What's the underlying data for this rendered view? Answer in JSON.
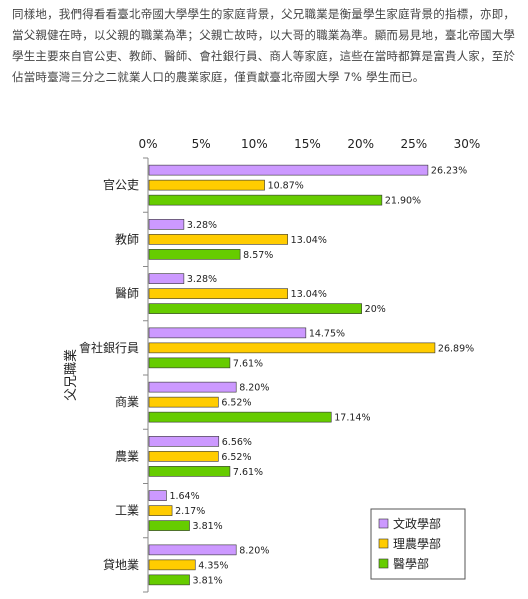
{
  "intro_text": "同樣地，我們得看看臺北帝國大學學生的家庭背景，父兄職業是衡量學生家庭背景的指標，亦即，當父親健在時，以父親的職業為準；父親亡故時，以大哥的職業為準。顯而易見地，臺北帝國大學學生主要來自官公吏、教師、醫師、會社銀行員、商人等家庭，這些在當時都算是富貴人家，至於佔當時臺灣三分之二就業人口的農業家庭，僅貢獻臺北帝國大學 7% 學生而已。",
  "chart_data": {
    "type": "bar",
    "orientation": "horizontal",
    "ylabel": "父兄職業",
    "xlim": [
      0,
      30
    ],
    "xticks": [
      "0%",
      "5%",
      "10%",
      "15%",
      "20%",
      "25%",
      "30%"
    ],
    "grid": false,
    "legend_position": "bottom-right",
    "categories": [
      "官公吏",
      "教師",
      "醫師",
      "會社銀行員",
      "商業",
      "農業",
      "工業",
      "貸地業"
    ],
    "series": [
      {
        "name": "文政學部",
        "color": "#cc99ff",
        "values": [
          26.23,
          3.28,
          3.28,
          14.75,
          8.2,
          6.56,
          1.64,
          8.2
        ],
        "labels": [
          "26.23%",
          "3.28%",
          "3.28%",
          "14.75%",
          "8.20%",
          "6.56%",
          "1.64%",
          "8.20%"
        ]
      },
      {
        "name": "理農學部",
        "color": "#ffcc00",
        "values": [
          10.87,
          13.04,
          13.04,
          26.89,
          6.52,
          6.52,
          2.17,
          4.35
        ],
        "labels": [
          "10.87%",
          "13.04%",
          "13.04%",
          "26.89%",
          "6.52%",
          "6.52%",
          "2.17%",
          "4.35%"
        ]
      },
      {
        "name": "醫學部",
        "color": "#66cc00",
        "values": [
          21.9,
          8.57,
          20,
          7.61,
          17.14,
          7.61,
          3.81,
          3.81
        ],
        "labels": [
          "21.90%",
          "8.57%",
          "20%",
          "7.61%",
          "17.14%",
          "7.61%",
          "3.81%",
          "3.81%"
        ]
      }
    ]
  }
}
